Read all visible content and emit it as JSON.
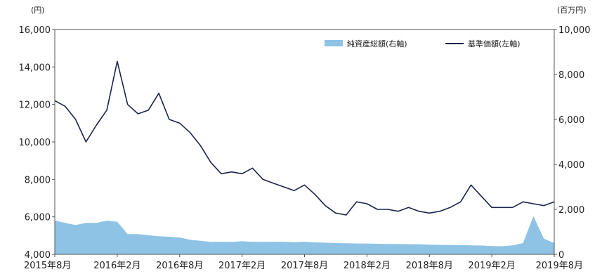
{
  "chart_data": {
    "type": "line",
    "left_unit": "(円)",
    "right_unit": "(百万円)",
    "legend": {
      "area_label": "純資産総額(右軸)",
      "line_label": "基準価額(左軸)"
    },
    "colors": {
      "area": "#8ec3e6",
      "line": "#1c2450",
      "axis": "#555555"
    },
    "x_ticks": [
      "2015年8月",
      "2016年2月",
      "2016年8月",
      "2017年2月",
      "2017年8月",
      "2018年2月",
      "2018年8月",
      "2019年2月",
      "2019年8月"
    ],
    "y_left": {
      "min": 4000,
      "max": 16000,
      "ticks": [
        "4,000",
        "6,000",
        "8,000",
        "10,000",
        "12,000",
        "14,000",
        "16,000"
      ]
    },
    "y_right": {
      "min": 0,
      "max": 10000,
      "ticks": [
        "0",
        "2,000",
        "4,000",
        "6,000",
        "8,000",
        "10,000"
      ]
    },
    "series": [
      {
        "name": "基準価額(左軸)",
        "axis": "left",
        "x": [
          "2015-08",
          "2015-09",
          "2015-10",
          "2015-11",
          "2015-12",
          "2016-01",
          "2016-02",
          "2016-03",
          "2016-04",
          "2016-05",
          "2016-06",
          "2016-07",
          "2016-08",
          "2016-09",
          "2016-10",
          "2016-11",
          "2016-12",
          "2017-01",
          "2017-02",
          "2017-03",
          "2017-04",
          "2017-05",
          "2017-06",
          "2017-07",
          "2017-08",
          "2017-09",
          "2017-10",
          "2017-11",
          "2017-12",
          "2018-01",
          "2018-02",
          "2018-03",
          "2018-04",
          "2018-05",
          "2018-06",
          "2018-07",
          "2018-08",
          "2018-09",
          "2018-10",
          "2018-11",
          "2018-12",
          "2019-01",
          "2019-02",
          "2019-03",
          "2019-04",
          "2019-05",
          "2019-06",
          "2019-07",
          "2019-08"
        ],
        "values": [
          12200,
          11900,
          11200,
          10000,
          10900,
          11700,
          14300,
          12000,
          11500,
          11700,
          12600,
          11200,
          11000,
          10500,
          9800,
          8900,
          8300,
          8400,
          8300,
          8600,
          8000,
          7800,
          7600,
          7400,
          7700,
          7200,
          6600,
          6200,
          6100,
          6800,
          6700,
          6400,
          6400,
          6300,
          6500,
          6300,
          6200,
          6300,
          6500,
          6800,
          7700,
          7100,
          6500,
          6500,
          6500,
          6800,
          6700,
          6600,
          6800
        ]
      },
      {
        "name": "純資産総額(右軸)",
        "axis": "right",
        "x": [
          "2015-08",
          "2015-09",
          "2015-10",
          "2015-11",
          "2015-12",
          "2016-01",
          "2016-02",
          "2016-03",
          "2016-04",
          "2016-05",
          "2016-06",
          "2016-07",
          "2016-08",
          "2016-09",
          "2016-10",
          "2016-11",
          "2016-12",
          "2017-01",
          "2017-02",
          "2017-03",
          "2017-04",
          "2017-05",
          "2017-06",
          "2017-07",
          "2017-08",
          "2017-09",
          "2017-10",
          "2017-11",
          "2017-12",
          "2018-01",
          "2018-02",
          "2018-03",
          "2018-04",
          "2018-05",
          "2018-06",
          "2018-07",
          "2018-08",
          "2018-09",
          "2018-10",
          "2018-11",
          "2018-12",
          "2019-01",
          "2019-02",
          "2019-03",
          "2019-04",
          "2019-05",
          "2019-06",
          "2019-07",
          "2019-08"
        ],
        "values": [
          1500,
          1400,
          1300,
          1400,
          1400,
          1500,
          1450,
          900,
          900,
          850,
          800,
          780,
          750,
          650,
          600,
          550,
          560,
          550,
          580,
          560,
          550,
          560,
          560,
          540,
          560,
          530,
          520,
          500,
          490,
          480,
          480,
          470,
          460,
          460,
          450,
          450,
          430,
          420,
          420,
          410,
          400,
          390,
          370,
          360,
          400,
          500,
          1700,
          700,
          500
        ]
      }
    ]
  }
}
